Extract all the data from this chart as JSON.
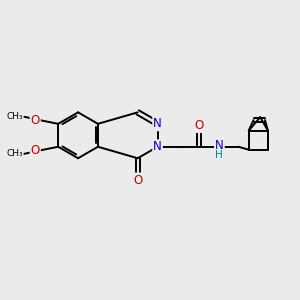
{
  "bg_color": "#ebebeb",
  "atom_color_N": "#0000cc",
  "atom_color_O": "#cc0000",
  "atom_color_NH": "#008888",
  "bond_color": "black",
  "bond_width": 1.4,
  "figsize": [
    3.0,
    3.0
  ],
  "dpi": 100,
  "xlim": [
    0,
    10
  ],
  "ylim": [
    0,
    10
  ],
  "font_size": 8.5
}
